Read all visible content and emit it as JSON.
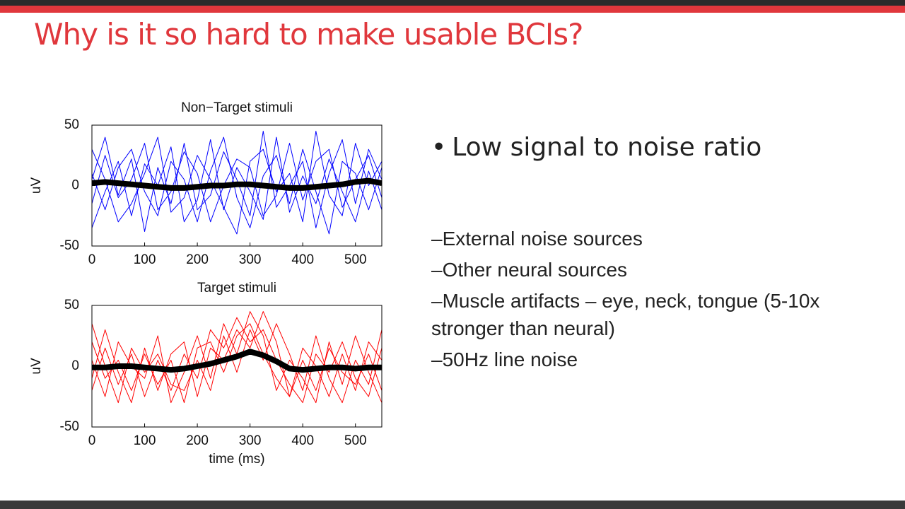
{
  "title": "Why is it so hard to make usable BCIs?",
  "bullet": "Low signal to noise ratio",
  "items": [
    "–External noise sources",
    "–Other neural sources",
    "–Muscle artifacts – eye, neck, tongue (5-10x stronger than neural)",
    "–50Hz line noise"
  ],
  "chart_data": [
    {
      "type": "line",
      "title": "Non−Target stimuli",
      "ylabel": "uV",
      "x": [
        0,
        25,
        50,
        75,
        100,
        125,
        150,
        175,
        200,
        225,
        250,
        275,
        300,
        325,
        350,
        375,
        400,
        425,
        450,
        475,
        500,
        525,
        550
      ],
      "xlim": [
        0,
        550
      ],
      "xticks": [
        0,
        100,
        200,
        300,
        400,
        500
      ],
      "ylim": [
        -50,
        50
      ],
      "yticks": [
        -50,
        0,
        50
      ],
      "series": [
        {
          "color": "#0000ff",
          "linewidth": 1,
          "values": [
            10,
            -20,
            15,
            30,
            -5,
            -25,
            20,
            5,
            -30,
            12,
            40,
            -10,
            -35,
            8,
            25,
            -15,
            30,
            -5,
            -40,
            20,
            10,
            -20,
            15
          ]
        },
        {
          "color": "#0000ff",
          "linewidth": 1,
          "values": [
            -15,
            25,
            -10,
            5,
            35,
            -20,
            -5,
            28,
            10,
            -30,
            0,
            22,
            15,
            -25,
            -8,
            35,
            -12,
            20,
            30,
            -18,
            5,
            25,
            -10
          ]
        },
        {
          "color": "#0000ff",
          "linewidth": 1,
          "values": [
            30,
            5,
            -30,
            -15,
            10,
            40,
            -22,
            -10,
            25,
            5,
            -18,
            -40,
            20,
            30,
            -5,
            10,
            -30,
            45,
            -8,
            -25,
            35,
            0,
            20
          ]
        },
        {
          "color": "#0000ff",
          "linewidth": 1,
          "values": [
            -35,
            -5,
            20,
            -25,
            18,
            0,
            32,
            -30,
            -12,
            38,
            -20,
            15,
            -5,
            -28,
            40,
            -22,
            8,
            -15,
            22,
            -5,
            -30,
            12,
            -20
          ]
        },
        {
          "color": "#0000ff",
          "linewidth": 1,
          "values": [
            5,
            40,
            -8,
            22,
            -38,
            15,
            -15,
            35,
            -20,
            -8,
            28,
            5,
            -25,
            45,
            -18,
            0,
            20,
            -35,
            10,
            38,
            -15,
            30,
            5
          ]
        },
        {
          "color": "#000000",
          "linewidth": 8,
          "values": [
            2,
            3,
            2,
            1,
            0,
            -1,
            -2,
            -2,
            -1,
            0,
            0,
            1,
            1,
            0,
            -1,
            -2,
            -2,
            -1,
            0,
            1,
            3,
            4,
            2
          ]
        }
      ]
    },
    {
      "type": "line",
      "title": "Target stimuli",
      "ylabel": "uV",
      "xlabel": "time (ms)",
      "x": [
        0,
        25,
        50,
        75,
        100,
        125,
        150,
        175,
        200,
        225,
        250,
        275,
        300,
        325,
        350,
        375,
        400,
        425,
        450,
        475,
        500,
        525,
        550
      ],
      "xlim": [
        0,
        550
      ],
      "xticks": [
        0,
        100,
        200,
        300,
        400,
        500
      ],
      "ylim": [
        -50,
        50
      ],
      "yticks": [
        -50,
        0,
        50
      ],
      "series": [
        {
          "color": "#ff0000",
          "linewidth": 1,
          "values": [
            20,
            -10,
            5,
            -20,
            10,
            -15,
            5,
            -30,
            15,
            20,
            -5,
            25,
            35,
            10,
            -10,
            -25,
            5,
            -20,
            15,
            -5,
            -15,
            10,
            -20
          ]
        },
        {
          "color": "#ff0000",
          "linewidth": 1,
          "values": [
            -20,
            15,
            -15,
            10,
            -25,
            5,
            -20,
            10,
            -10,
            30,
            15,
            40,
            20,
            30,
            5,
            -15,
            -30,
            10,
            -5,
            20,
            -10,
            -25,
            15
          ]
        },
        {
          "color": "#ff0000",
          "linewidth": 1,
          "values": [
            5,
            -25,
            20,
            0,
            -10,
            25,
            -30,
            -5,
            25,
            -10,
            35,
            10,
            45,
            25,
            -20,
            5,
            -10,
            -30,
            20,
            -15,
            25,
            -5,
            -30
          ]
        },
        {
          "color": "#ff0000",
          "linewidth": 1,
          "values": [
            -10,
            30,
            -5,
            -30,
            15,
            -20,
            10,
            20,
            -25,
            15,
            5,
            30,
            15,
            45,
            20,
            -25,
            15,
            0,
            -25,
            10,
            -20,
            20,
            5
          ]
        },
        {
          "color": "#ff0000",
          "linewidth": 1,
          "values": [
            35,
            0,
            -30,
            15,
            -5,
            10,
            -15,
            -20,
            5,
            -20,
            25,
            -5,
            30,
            5,
            35,
            10,
            -20,
            25,
            -10,
            -30,
            5,
            -15,
            30
          ]
        },
        {
          "color": "#000000",
          "linewidth": 8,
          "values": [
            -1,
            -1,
            0,
            0,
            -1,
            -2,
            -3,
            -2,
            0,
            2,
            5,
            8,
            12,
            9,
            4,
            -2,
            -3,
            -2,
            -1,
            -1,
            -2,
            -1,
            -1
          ]
        }
      ]
    }
  ]
}
